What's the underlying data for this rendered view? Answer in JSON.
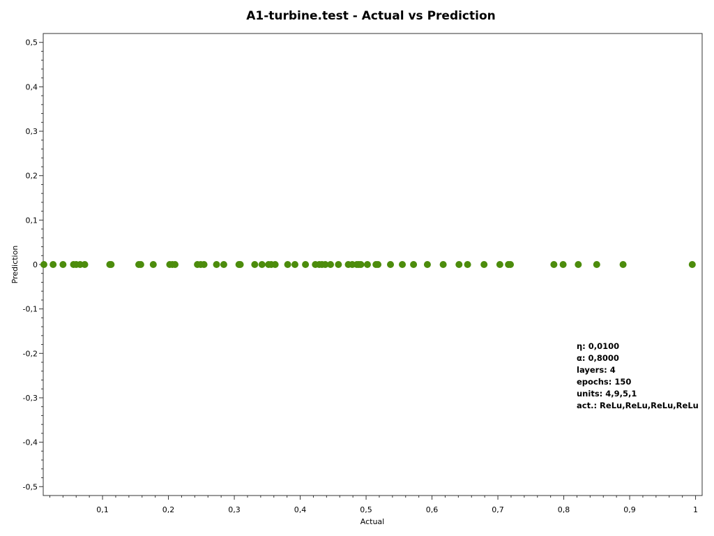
{
  "chart_data": {
    "type": "scatter",
    "title": "A1-turbine.test - Actual vs Prediction",
    "xlabel": "Actual",
    "ylabel": "Prediction",
    "xlim": [
      0.01,
      1.01
    ],
    "ylim": [
      -0.52,
      0.52
    ],
    "x_ticks": [
      {
        "value": 0.1,
        "label": "0,1"
      },
      {
        "value": 0.2,
        "label": "0,2"
      },
      {
        "value": 0.3,
        "label": "0,3"
      },
      {
        "value": 0.4,
        "label": "0,4"
      },
      {
        "value": 0.5,
        "label": "0,5"
      },
      {
        "value": 0.6,
        "label": "0,6"
      },
      {
        "value": 0.7,
        "label": "0,7"
      },
      {
        "value": 0.8,
        "label": "0,8"
      },
      {
        "value": 0.9,
        "label": "0,9"
      },
      {
        "value": 1.0,
        "label": "1"
      }
    ],
    "y_ticks": [
      {
        "value": 0.5,
        "label": "0,5"
      },
      {
        "value": 0.4,
        "label": "0,4"
      },
      {
        "value": 0.3,
        "label": "0,3"
      },
      {
        "value": 0.2,
        "label": "0,2"
      },
      {
        "value": 0.1,
        "label": "0,1"
      },
      {
        "value": 0.0,
        "label": "0"
      },
      {
        "value": -0.1,
        "label": "-0,1"
      },
      {
        "value": -0.2,
        "label": "-0,2"
      },
      {
        "value": -0.3,
        "label": "-0,3"
      },
      {
        "value": -0.4,
        "label": "-0,4"
      },
      {
        "value": -0.5,
        "label": "-0,5"
      }
    ],
    "grid": false,
    "marker_color": "#4c8c0c",
    "series": [
      {
        "x": [
          0.011,
          0.025,
          0.04,
          0.056,
          0.06,
          0.066,
          0.073,
          0.111,
          0.113,
          0.155,
          0.158,
          0.177,
          0.202,
          0.206,
          0.21,
          0.244,
          0.249,
          0.254,
          0.273,
          0.284,
          0.307,
          0.309,
          0.331,
          0.342,
          0.352,
          0.356,
          0.362,
          0.381,
          0.392,
          0.408,
          0.423,
          0.429,
          0.433,
          0.438,
          0.446,
          0.458,
          0.473,
          0.479,
          0.486,
          0.489,
          0.492,
          0.502,
          0.515,
          0.518,
          0.537,
          0.555,
          0.572,
          0.593,
          0.617,
          0.641,
          0.654,
          0.679,
          0.703,
          0.716,
          0.719,
          0.785,
          0.799,
          0.822,
          0.85,
          0.89,
          0.995
        ],
        "y": [
          0,
          0,
          0,
          0,
          0,
          0,
          0,
          0,
          0,
          0,
          0,
          0,
          0,
          0,
          0,
          0,
          0,
          0,
          0,
          0,
          0,
          0,
          0,
          0,
          0,
          0,
          0,
          0,
          0,
          0,
          0,
          0,
          0,
          0,
          0,
          0,
          0,
          0,
          0,
          0,
          0,
          0,
          0,
          0,
          0,
          0,
          0,
          0,
          0,
          0,
          0,
          0,
          0,
          0,
          0,
          0,
          0,
          0,
          0,
          0,
          0
        ]
      }
    ],
    "annotations": [
      "η: 0,0100",
      "α: 0,8000",
      "layers: 4",
      "epochs: 150",
      "units: 4,9,5,1",
      "act.: ReLu,ReLu,ReLu,ReLu"
    ]
  }
}
